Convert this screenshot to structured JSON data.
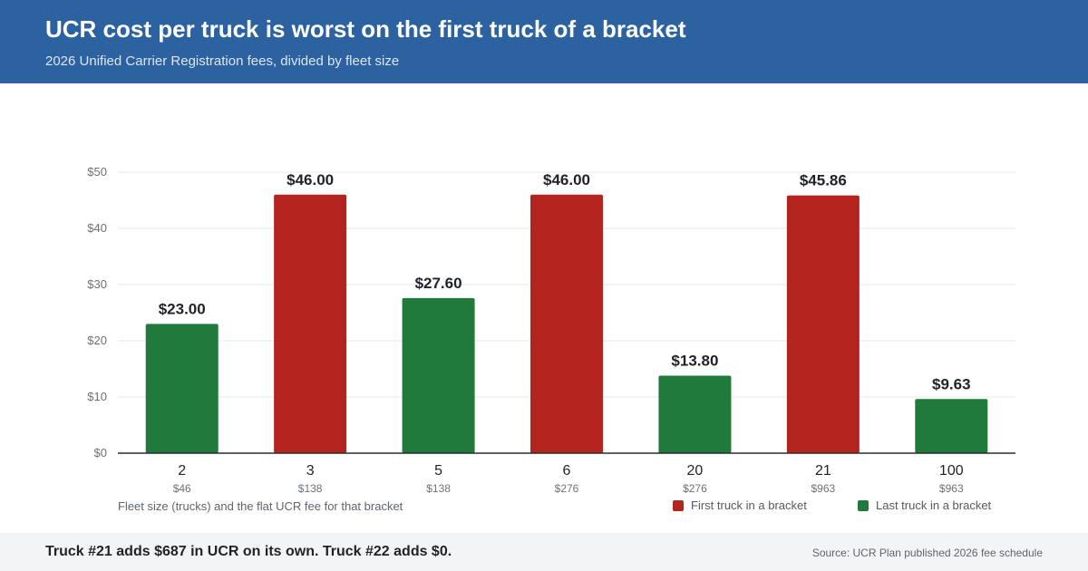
{
  "header": {
    "title": "UCR cost per truck is worst on the first truck of a bracket",
    "subtitle": "2026 Unified Carrier Registration fees, divided by fleet size"
  },
  "colors": {
    "header_bg": "#2d62a0",
    "first_truck": "#b3241e",
    "last_truck": "#207a3c",
    "footer_bg": "#f3f4f6"
  },
  "chart_data": {
    "type": "bar",
    "categories": [
      "2",
      "3",
      "5",
      "6",
      "20",
      "21",
      "100"
    ],
    "fees": [
      "$46",
      "$138",
      "$138",
      "$276",
      "$276",
      "$963",
      "$963"
    ],
    "values": [
      23.0,
      46.0,
      27.6,
      46.0,
      13.8,
      45.86,
      9.63
    ],
    "value_labels": [
      "$23.00",
      "$46.00",
      "$27.60",
      "$46.00",
      "$13.80",
      "$45.86",
      "$9.63"
    ],
    "kinds": [
      "last",
      "first",
      "last",
      "first",
      "last",
      "first",
      "last"
    ],
    "ylim": [
      0,
      50
    ],
    "yticks": [
      0,
      10,
      20,
      30,
      40,
      50
    ],
    "ytick_labels": [
      "$0",
      "$10",
      "$20",
      "$30",
      "$40",
      "$50"
    ],
    "xlabel": "Fleet size (trucks) and the flat UCR fee for that bracket",
    "grid": true,
    "legend_position": "bottom-right",
    "legend": {
      "first": "First truck in a bracket",
      "last": "Last truck in a bracket"
    }
  },
  "footer": {
    "note": "Truck #21 adds $687 in UCR on its own. Truck #22 adds $0.",
    "source": "Source: UCR Plan published 2026 fee schedule"
  }
}
